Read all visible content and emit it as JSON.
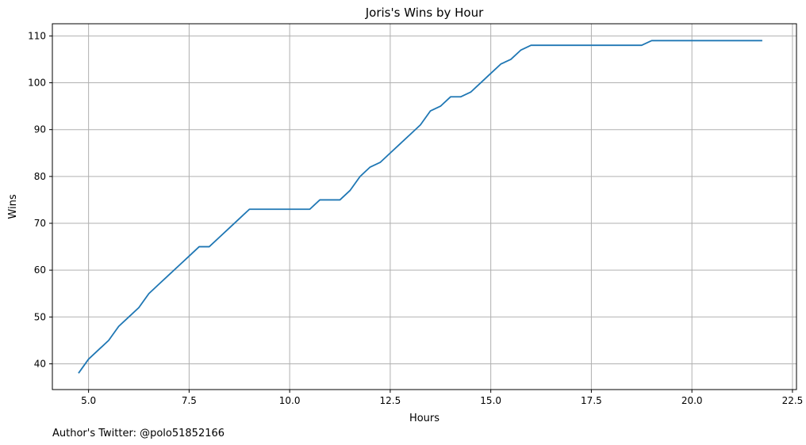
{
  "chart_data": {
    "type": "line",
    "title": "Joris's Wins by Hour",
    "xlabel": "Hours",
    "ylabel": "Wins",
    "xlim": [
      4.1,
      22.6
    ],
    "ylim": [
      34.5,
      112.6
    ],
    "xticks": [
      5.0,
      7.5,
      10.0,
      12.5,
      15.0,
      17.5,
      20.0,
      22.5
    ],
    "xtick_labels": [
      "5.0",
      "7.5",
      "10.0",
      "12.5",
      "15.0",
      "17.5",
      "20.0",
      "22.5"
    ],
    "yticks": [
      40,
      50,
      60,
      70,
      80,
      90,
      100,
      110
    ],
    "ytick_labels": [
      "40",
      "50",
      "60",
      "70",
      "80",
      "90",
      "100",
      "110"
    ],
    "grid": true,
    "line_color": "#1f77b4",
    "series": [
      {
        "x": [
          4.75,
          5.0,
          5.25,
          5.5,
          5.75,
          6.0,
          6.25,
          6.5,
          6.75,
          7.0,
          7.25,
          7.5,
          7.75,
          8.0,
          8.25,
          8.5,
          8.75,
          9.0,
          9.25,
          9.5,
          9.75,
          10.0,
          10.25,
          10.5,
          10.75,
          11.0,
          11.25,
          11.5,
          11.75,
          12.0,
          12.25,
          12.5,
          12.75,
          13.0,
          13.25,
          13.5,
          13.75,
          14.0,
          14.25,
          14.5,
          14.75,
          15.0,
          15.25,
          15.5,
          15.75,
          16.0,
          16.25,
          16.5,
          16.75,
          17.0,
          17.25,
          17.5,
          17.75,
          18.0,
          18.25,
          18.5,
          18.75,
          19.0,
          19.25,
          19.5,
          19.75,
          20.0,
          20.25,
          20.5,
          20.75,
          21.0,
          21.25,
          21.5,
          21.75
        ],
        "y": [
          38,
          41,
          43,
          45,
          48,
          50,
          52,
          55,
          57,
          59,
          61,
          63,
          65,
          65,
          67,
          69,
          71,
          73,
          73,
          73,
          73,
          73,
          73,
          73,
          75,
          75,
          75,
          77,
          80,
          82,
          83,
          85,
          87,
          89,
          91,
          94,
          95,
          97,
          97,
          98,
          100,
          102,
          104,
          105,
          107,
          108,
          108,
          108,
          108,
          108,
          108,
          108,
          108,
          108,
          108,
          108,
          108,
          109,
          109,
          109,
          109,
          109,
          109,
          109,
          109,
          109,
          109,
          109,
          109
        ]
      }
    ]
  },
  "footnote": "Author's Twitter: @polo51852166"
}
